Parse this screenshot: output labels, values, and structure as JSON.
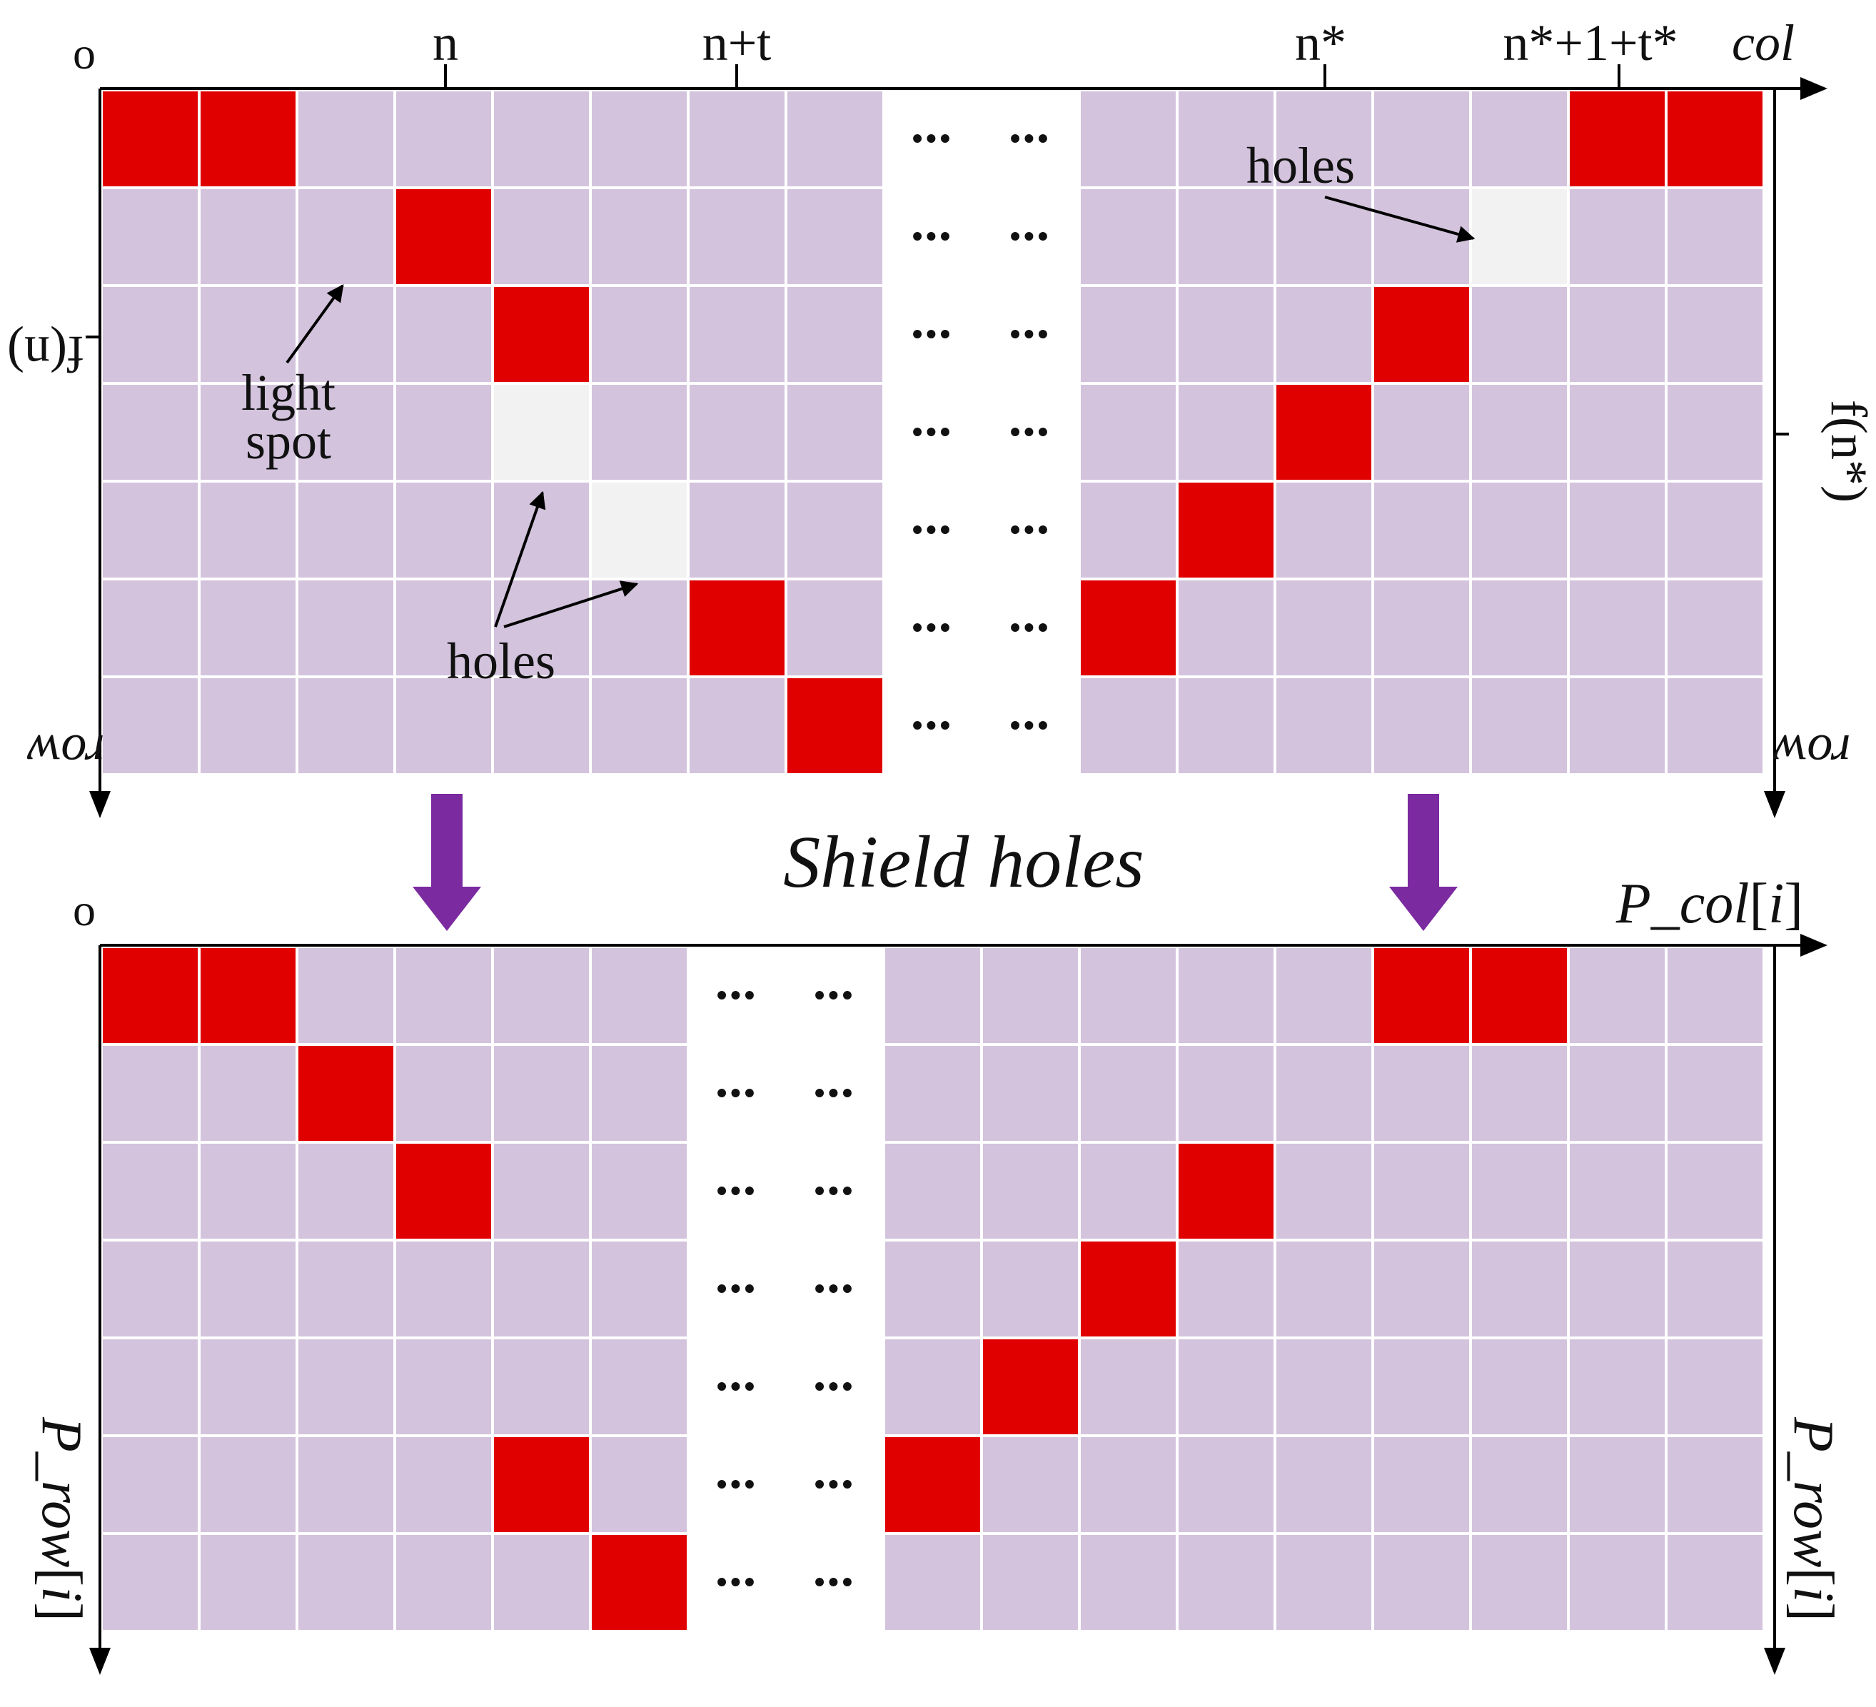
{
  "colors": {
    "cell": "#d3c3dd",
    "spot": "#e00000",
    "hole": "#f2f2f2",
    "grid_line": "#ffffff",
    "axis": "#000000",
    "arrow": "#7b2aa0"
  },
  "top": {
    "origin": "o",
    "col_ticks": [
      "n",
      "n+t",
      "n*",
      "n*+1+t*"
    ],
    "col_axis": "col",
    "row_axis_left": "row",
    "row_axis_right": "row",
    "left_tick": "f(n)",
    "right_tick": "f(n*)",
    "ellipsis": "•••",
    "grid": [
      [
        "S",
        "S",
        "C",
        "C",
        "C",
        "C",
        "C",
        "C",
        "D",
        "D",
        "C",
        "C",
        "C",
        "C",
        "C",
        "S",
        "S"
      ],
      [
        "C",
        "C",
        "C",
        "S",
        "C",
        "C",
        "C",
        "C",
        "D",
        "D",
        "C",
        "C",
        "C",
        "C",
        "H",
        "C",
        "C"
      ],
      [
        "C",
        "C",
        "C",
        "C",
        "S",
        "C",
        "C",
        "C",
        "D",
        "D",
        "C",
        "C",
        "C",
        "S",
        "C",
        "C",
        "C"
      ],
      [
        "C",
        "C",
        "C",
        "C",
        "H",
        "C",
        "C",
        "C",
        "D",
        "D",
        "C",
        "C",
        "S",
        "C",
        "C",
        "C",
        "C"
      ],
      [
        "C",
        "C",
        "C",
        "C",
        "C",
        "H",
        "C",
        "C",
        "D",
        "D",
        "C",
        "S",
        "C",
        "C",
        "C",
        "C",
        "C"
      ],
      [
        "C",
        "C",
        "C",
        "C",
        "C",
        "C",
        "S",
        "C",
        "D",
        "D",
        "S",
        "C",
        "C",
        "C",
        "C",
        "C",
        "C"
      ],
      [
        "C",
        "C",
        "C",
        "C",
        "C",
        "C",
        "C",
        "S",
        "D",
        "D",
        "C",
        "C",
        "C",
        "C",
        "C",
        "C",
        "C"
      ]
    ],
    "annotations": {
      "light_spot_line1": "light",
      "light_spot_line2": "spot",
      "holes_left": "holes",
      "holes_right": "holes"
    }
  },
  "middle_label": "Shield holes",
  "bottom": {
    "origin": "o",
    "col_axis_p": "P",
    "col_axis_var": "col",
    "col_axis_idx": "i",
    "row_axis_p": "P",
    "row_axis_var": "row",
    "row_axis_idx": "i",
    "ellipsis": "•••",
    "grid": [
      [
        "S",
        "S",
        "C",
        "C",
        "C",
        "C",
        "D",
        "D",
        "C",
        "C",
        "C",
        "C",
        "C",
        "S",
        "S",
        "C",
        "C"
      ],
      [
        "C",
        "C",
        "S",
        "C",
        "C",
        "C",
        "D",
        "D",
        "C",
        "C",
        "C",
        "C",
        "C",
        "C",
        "C",
        "C",
        "C"
      ],
      [
        "C",
        "C",
        "C",
        "S",
        "C",
        "C",
        "D",
        "D",
        "C",
        "C",
        "C",
        "S",
        "C",
        "C",
        "C",
        "C",
        "C"
      ],
      [
        "C",
        "C",
        "C",
        "C",
        "C",
        "C",
        "D",
        "D",
        "C",
        "C",
        "S",
        "C",
        "C",
        "C",
        "C",
        "C",
        "C"
      ],
      [
        "C",
        "C",
        "C",
        "C",
        "C",
        "C",
        "D",
        "D",
        "C",
        "S",
        "C",
        "C",
        "C",
        "C",
        "C",
        "C",
        "C"
      ],
      [
        "C",
        "C",
        "C",
        "C",
        "S",
        "C",
        "D",
        "D",
        "S",
        "C",
        "C",
        "C",
        "C",
        "C",
        "C",
        "C",
        "C"
      ],
      [
        "C",
        "C",
        "C",
        "C",
        "C",
        "S",
        "D",
        "D",
        "C",
        "C",
        "C",
        "C",
        "C",
        "C",
        "C",
        "C",
        "C"
      ]
    ]
  }
}
